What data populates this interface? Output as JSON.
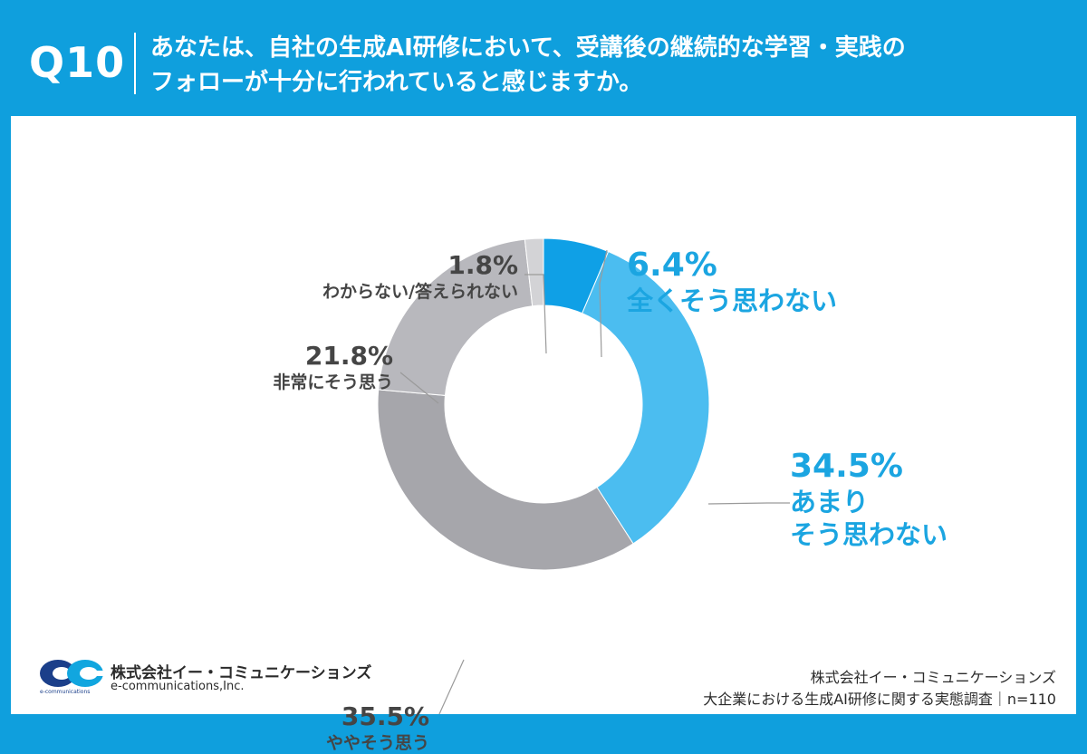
{
  "header": {
    "q_number": "Q10",
    "title_line1": "あなたは、自社の生成AI研修において、受講後の継続的な学習・実践の",
    "title_line2": "フォローが十分に行われていると感じますか。"
  },
  "chart_data": {
    "type": "pie",
    "donut": true,
    "start_angle_deg": 0,
    "direction": "clockwise",
    "slices": [
      {
        "label": "全くそう思わない",
        "value": 6.4,
        "value_label": "6.4%",
        "color": "#0fa0e6"
      },
      {
        "label": "あまりそう思わない",
        "value": 34.5,
        "value_label": "34.5%",
        "color": "#4bbdf0"
      },
      {
        "label": "ややそう思う",
        "value": 35.5,
        "value_label": "35.5%",
        "color": "#a6a6ab"
      },
      {
        "label": "非常にそう思う",
        "value": 21.8,
        "value_label": "21.8%",
        "color": "#b8b8bd"
      },
      {
        "label": "わからない/答えられない",
        "value": 1.8,
        "value_label": "1.8%",
        "color": "#d3d3d6"
      }
    ]
  },
  "labels": {
    "s1_text": "全くそう思わない",
    "s2_text_line1": "あまり",
    "s2_text_line2": "そう思わない",
    "s3_text": "ややそう思う",
    "s4_text": "非常にそう思う",
    "s5_text": "わからない/答えられない"
  },
  "logo": {
    "company_name": "株式会社イー・コミュニケーションズ",
    "english_name": "e-communications,Inc.",
    "mark_text": "e-communications",
    "colors": {
      "navy": "#1b3f8a",
      "cyan": "#11a6df"
    }
  },
  "footer": {
    "company": "株式会社イー・コミュニケーションズ",
    "survey": "大企業における生成AI研修に関する実態調査｜n=110"
  }
}
